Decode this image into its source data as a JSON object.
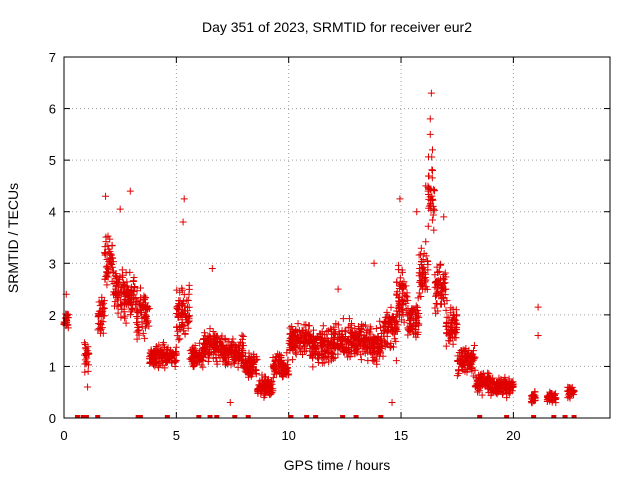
{
  "chart_data": {
    "type": "scatter",
    "title": "Day 351 of 2023, SRMTID for receiver eur2",
    "xlabel": "GPS time / hours",
    "ylabel": "SRMTID / TECUs",
    "xlim": [
      0,
      24.3
    ],
    "ylim": [
      0,
      7
    ],
    "xticks": [
      0,
      5,
      10,
      15,
      20
    ],
    "yticks": [
      0,
      1,
      2,
      3,
      4,
      5,
      6,
      7
    ],
    "grid": true,
    "marker": "+",
    "color": "#e00000",
    "series": [
      {
        "name": "SRMTID",
        "segments": [
          {
            "x": [
              0.0,
              0.2
            ],
            "center": 1.9,
            "spread": 0.3
          },
          {
            "x": [
              0.9,
              1.1
            ],
            "center": 1.2,
            "spread": 0.5
          },
          {
            "x": [
              1.5,
              1.8
            ],
            "center": 2.0,
            "spread": 0.6
          },
          {
            "x": [
              1.8,
              2.2
            ],
            "center": 3.0,
            "spread": 0.8
          },
          {
            "x": [
              2.2,
              2.6
            ],
            "center": 2.5,
            "spread": 0.8
          },
          {
            "x": [
              2.6,
              3.2
            ],
            "center": 2.4,
            "spread": 0.8
          },
          {
            "x": [
              3.2,
              3.8
            ],
            "center": 2.0,
            "spread": 0.7
          },
          {
            "x": [
              3.8,
              4.5
            ],
            "center": 1.2,
            "spread": 0.4
          },
          {
            "x": [
              4.5,
              5.0
            ],
            "center": 1.2,
            "spread": 0.3
          },
          {
            "x": [
              5.0,
              5.6
            ],
            "center": 2.0,
            "spread": 0.9
          },
          {
            "x": [
              5.6,
              6.2
            ],
            "center": 1.2,
            "spread": 0.4
          },
          {
            "x": [
              6.2,
              7.0
            ],
            "center": 1.4,
            "spread": 0.5
          },
          {
            "x": [
              7.0,
              8.0
            ],
            "center": 1.3,
            "spread": 0.5
          },
          {
            "x": [
              8.0,
              8.6
            ],
            "center": 1.0,
            "spread": 0.5
          },
          {
            "x": [
              8.6,
              9.3
            ],
            "center": 0.6,
            "spread": 0.3
          },
          {
            "x": [
              9.3,
              10.0
            ],
            "center": 1.0,
            "spread": 0.4
          },
          {
            "x": [
              10.0,
              11.0
            ],
            "center": 1.5,
            "spread": 0.5
          },
          {
            "x": [
              11.0,
              12.0
            ],
            "center": 1.4,
            "spread": 0.6
          },
          {
            "x": [
              12.0,
              12.8
            ],
            "center": 1.5,
            "spread": 0.6
          },
          {
            "x": [
              12.8,
              13.5
            ],
            "center": 1.5,
            "spread": 0.5
          },
          {
            "x": [
              13.5,
              14.2
            ],
            "center": 1.4,
            "spread": 0.6
          },
          {
            "x": [
              14.2,
              14.8
            ],
            "center": 1.7,
            "spread": 0.7
          },
          {
            "x": [
              14.8,
              15.3
            ],
            "center": 2.3,
            "spread": 0.9
          },
          {
            "x": [
              15.3,
              15.8
            ],
            "center": 1.9,
            "spread": 0.7
          },
          {
            "x": [
              15.8,
              16.2
            ],
            "center": 2.8,
            "spread": 0.9
          },
          {
            "x": [
              16.2,
              16.5
            ],
            "center": 4.2,
            "spread": 1.4
          },
          {
            "x": [
              16.5,
              17.0
            ],
            "center": 2.6,
            "spread": 0.9
          },
          {
            "x": [
              17.0,
              17.5
            ],
            "center": 1.8,
            "spread": 0.6
          },
          {
            "x": [
              17.5,
              18.3
            ],
            "center": 1.1,
            "spread": 0.4
          },
          {
            "x": [
              18.3,
              19.0
            ],
            "center": 0.7,
            "spread": 0.3
          },
          {
            "x": [
              19.0,
              20.0
            ],
            "center": 0.6,
            "spread": 0.3
          },
          {
            "x": [
              20.8,
              21.0
            ],
            "center": 0.4,
            "spread": 0.2
          },
          {
            "x": [
              21.5,
              21.9
            ],
            "center": 0.4,
            "spread": 0.2
          },
          {
            "x": [
              22.4,
              22.7
            ],
            "center": 0.5,
            "spread": 0.2
          }
        ],
        "highlights": [
          {
            "x": 16.35,
            "y": 6.3
          },
          {
            "x": 16.3,
            "y": 5.8
          },
          {
            "x": 16.3,
            "y": 5.5
          },
          {
            "x": 16.4,
            "y": 5.2
          },
          {
            "x": 16.4,
            "y": 4.8
          },
          {
            "x": 16.1,
            "y": 4.5
          },
          {
            "x": 14.95,
            "y": 4.25
          },
          {
            "x": 2.95,
            "y": 4.4
          },
          {
            "x": 1.85,
            "y": 4.3
          },
          {
            "x": 5.35,
            "y": 4.25
          },
          {
            "x": 5.3,
            "y": 3.8
          },
          {
            "x": 2.5,
            "y": 4.05
          },
          {
            "x": 15.7,
            "y": 4.0
          },
          {
            "x": 16.9,
            "y": 3.9
          },
          {
            "x": 21.1,
            "y": 2.15
          },
          {
            "x": 21.1,
            "y": 1.6
          },
          {
            "x": 0.1,
            "y": 2.4
          },
          {
            "x": 6.6,
            "y": 2.9
          },
          {
            "x": 13.8,
            "y": 3.0
          },
          {
            "x": 12.2,
            "y": 2.5
          },
          {
            "x": 8.9,
            "y": 0.4
          },
          {
            "x": 14.6,
            "y": 0.3
          },
          {
            "x": 1.05,
            "y": 0.6
          },
          {
            "x": 7.4,
            "y": 0.3
          }
        ],
        "zero_ticks": [
          0.6,
          0.85,
          1.0,
          1.5,
          3.3,
          3.4,
          4.6,
          6.0,
          6.5,
          6.8,
          7.6,
          8.2,
          10.1,
          10.8,
          11.2,
          12.4,
          13.0,
          14.1,
          18.5,
          19.7,
          20.9,
          21.8,
          22.3,
          22.7
        ]
      }
    ]
  }
}
